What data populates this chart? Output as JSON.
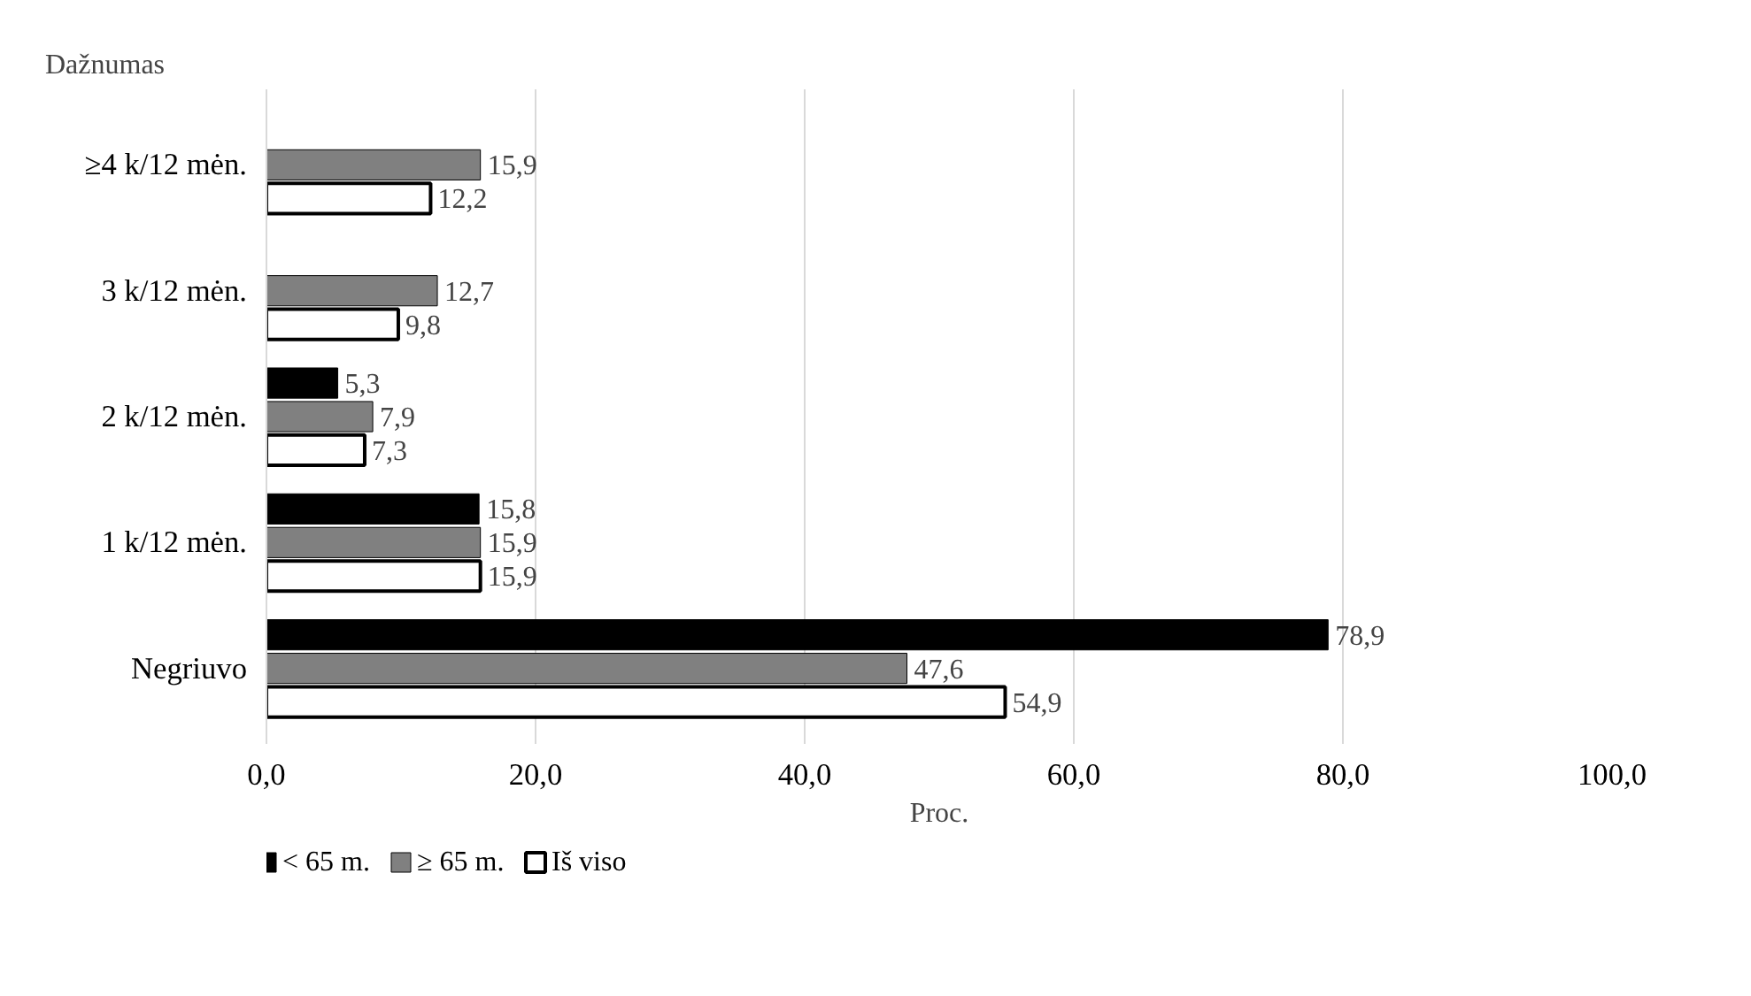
{
  "chart_data": {
    "type": "bar",
    "orientation": "horizontal",
    "xlabel": "Proc.",
    "ylabel": "Dažnumas",
    "categories": [
      "≥4 k/12 mėn.",
      "3 k/12 mėn.",
      "2 k/12 mėn.",
      "1 k/12 mėn.",
      "Negriuvo"
    ],
    "series": [
      {
        "name": "< 65 m.",
        "color": "#000000",
        "values": [
          null,
          null,
          5.3,
          15.8,
          78.9
        ],
        "value_labels": [
          null,
          null,
          "5,3",
          "15,8",
          "78,9"
        ]
      },
      {
        "name": "≥ 65 m.",
        "color": "#808080",
        "values": [
          15.9,
          12.7,
          7.9,
          15.9,
          47.6
        ],
        "value_labels": [
          "15,9",
          "12,7",
          "7,9",
          "15,9",
          "47,6"
        ]
      },
      {
        "name": "Iš viso",
        "color": "#ffffff",
        "values": [
          12.2,
          9.8,
          7.3,
          15.9,
          54.9
        ],
        "value_labels": [
          "12,2",
          "9,8",
          "7,3",
          "15,9",
          "54,9"
        ]
      }
    ],
    "xlim": [
      0,
      100
    ],
    "xticks": [
      {
        "value": 0,
        "label": "0,0"
      },
      {
        "value": 20,
        "label": "20,0"
      },
      {
        "value": 40,
        "label": "40,0"
      },
      {
        "value": 60,
        "label": "60,0"
      },
      {
        "value": 80,
        "label": "80,0"
      },
      {
        "value": 100,
        "label": "100,0"
      }
    ],
    "grid": "x",
    "legend": "bottom left"
  }
}
